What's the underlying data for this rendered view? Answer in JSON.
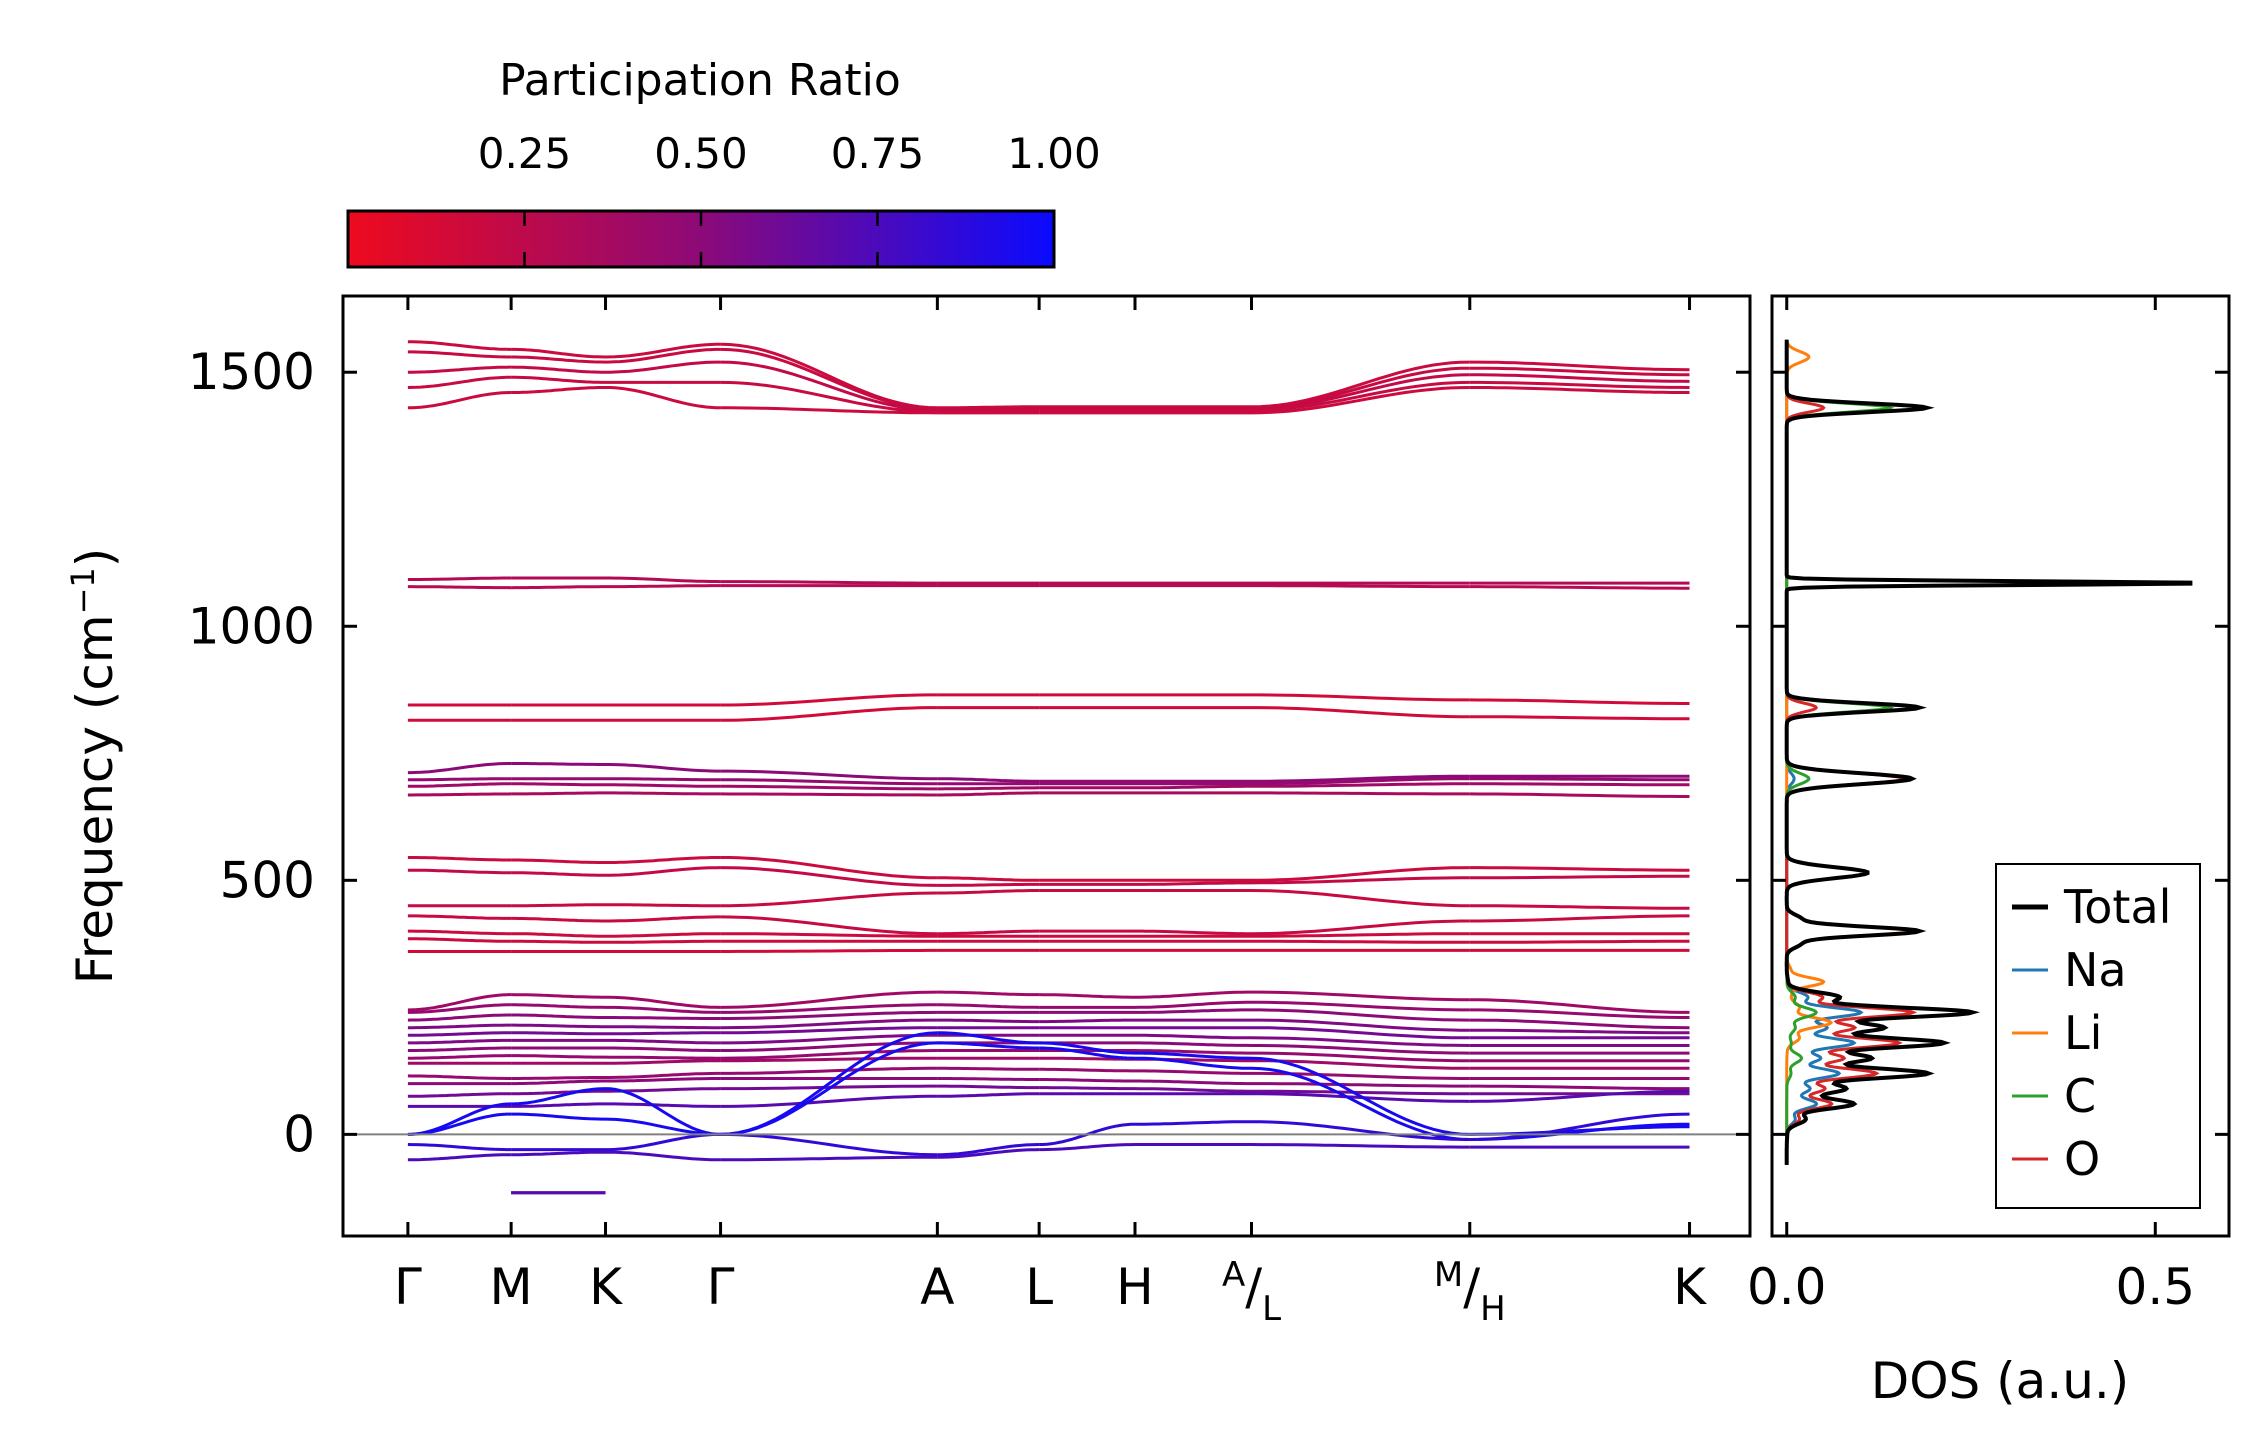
{
  "colors": {
    "low": "#ee0a1e",
    "mid": "#8c0a78",
    "high": "#0a0aff",
    "dos_total": "#000000",
    "dos_na": "#1f77b4",
    "dos_li": "#ff7f0e",
    "dos_c": "#2ca02c",
    "dos_o": "#d62728",
    "zero_line": "#808080"
  },
  "chart_data": [
    {
      "type": "line",
      "title": "",
      "ylabel": "Frequency (cm⁻¹)",
      "xlabel": "",
      "ylim": [
        -200,
        1650
      ],
      "yticks": [
        0,
        500,
        1000,
        1500
      ],
      "ytick_labels": [
        "0",
        "500",
        "1000",
        "1500"
      ],
      "kpath": [
        {
          "label": "Γ",
          "pos": 0.0
        },
        {
          "label": "M",
          "pos": 0.7
        },
        {
          "label": "K",
          "pos": 1.34
        },
        {
          "label": "Γ",
          "pos": 2.12
        },
        {
          "label": "A",
          "pos": 3.59
        },
        {
          "label": "L",
          "pos": 4.28
        },
        {
          "label": "H",
          "pos": 4.93
        },
        {
          "label": "A",
          "sub": "L",
          "pos": 5.72
        },
        {
          "label": "M",
          "sub": "H",
          "pos": 7.2
        },
        {
          "label": "K",
          "pos": 8.69
        }
      ],
      "x_range": [
        -0.44,
        9.1
      ],
      "colorbar": {
        "label": "Participation Ratio",
        "range": [
          0.0,
          1.0
        ],
        "ticks": [
          0.25,
          0.5,
          0.75,
          1.0
        ],
        "tick_labels": [
          "0.25",
          "0.50",
          "0.75",
          "1.00"
        ]
      },
      "series": [
        {
          "name": "band-1510",
          "pr": 0.18,
          "values": [
            1560,
            1545,
            1530,
            1555,
            1430,
            1432,
            1432,
            1432,
            1520,
            1505
          ]
        },
        {
          "name": "band-1495",
          "pr": 0.2,
          "values": [
            1540,
            1530,
            1520,
            1545,
            1428,
            1430,
            1430,
            1430,
            1508,
            1495
          ]
        },
        {
          "name": "band-1480",
          "pr": 0.22,
          "values": [
            1500,
            1510,
            1500,
            1520,
            1425,
            1428,
            1428,
            1428,
            1495,
            1482
          ]
        },
        {
          "name": "band-1455",
          "pr": 0.2,
          "values": [
            1470,
            1490,
            1480,
            1480,
            1422,
            1425,
            1425,
            1425,
            1480,
            1470
          ]
        },
        {
          "name": "band-1440",
          "pr": 0.18,
          "values": [
            1430,
            1460,
            1470,
            1430,
            1420,
            1420,
            1420,
            1420,
            1470,
            1460
          ]
        },
        {
          "name": "band-1090",
          "pr": 0.3,
          "values": [
            1092,
            1095,
            1095,
            1088,
            1085,
            1085,
            1085,
            1085,
            1085,
            1085
          ]
        },
        {
          "name": "band-1075",
          "pr": 0.28,
          "values": [
            1078,
            1076,
            1078,
            1080,
            1080,
            1080,
            1080,
            1080,
            1078,
            1075
          ]
        },
        {
          "name": "band-840",
          "pr": 0.15,
          "values": [
            845,
            845,
            845,
            845,
            865,
            865,
            865,
            865,
            855,
            848
          ]
        },
        {
          "name": "band-815",
          "pr": 0.15,
          "values": [
            815,
            815,
            815,
            815,
            840,
            840,
            840,
            840,
            822,
            818
          ]
        },
        {
          "name": "band-715",
          "pr": 0.5,
          "values": [
            712,
            730,
            728,
            715,
            700,
            695,
            695,
            695,
            705,
            705
          ]
        },
        {
          "name": "band-695",
          "pr": 0.45,
          "values": [
            698,
            700,
            700,
            698,
            690,
            690,
            690,
            690,
            700,
            698
          ]
        },
        {
          "name": "band-680",
          "pr": 0.4,
          "values": [
            685,
            690,
            688,
            685,
            680,
            682,
            682,
            685,
            690,
            688
          ]
        },
        {
          "name": "band-665",
          "pr": 0.35,
          "values": [
            668,
            670,
            672,
            670,
            668,
            672,
            672,
            672,
            670,
            665
          ]
        },
        {
          "name": "band-540",
          "pr": 0.18,
          "values": [
            545,
            540,
            535,
            545,
            505,
            500,
            500,
            500,
            525,
            520
          ]
        },
        {
          "name": "band-515",
          "pr": 0.22,
          "values": [
            520,
            515,
            510,
            525,
            490,
            492,
            492,
            495,
            505,
            508
          ]
        },
        {
          "name": "band-480",
          "pr": 0.2,
          "values": [
            450,
            450,
            452,
            450,
            475,
            480,
            480,
            480,
            450,
            445
          ]
        },
        {
          "name": "band-430",
          "pr": 0.2,
          "values": [
            430,
            425,
            420,
            428,
            395,
            400,
            400,
            395,
            420,
            430
          ]
        },
        {
          "name": "band-395",
          "pr": 0.18,
          "values": [
            400,
            395,
            390,
            395,
            390,
            390,
            390,
            390,
            395,
            395
          ]
        },
        {
          "name": "band-380",
          "pr": 0.18,
          "values": [
            385,
            380,
            378,
            380,
            380,
            380,
            380,
            380,
            378,
            380
          ]
        },
        {
          "name": "band-360",
          "pr": 0.15,
          "values": [
            360,
            360,
            360,
            360,
            362,
            362,
            362,
            362,
            362,
            362
          ]
        },
        {
          "name": "band-270",
          "pr": 0.4,
          "values": [
            245,
            275,
            270,
            250,
            280,
            275,
            270,
            280,
            265,
            240
          ]
        },
        {
          "name": "band-250",
          "pr": 0.45,
          "values": [
            240,
            255,
            250,
            240,
            255,
            250,
            250,
            260,
            245,
            230
          ]
        },
        {
          "name": "band-230",
          "pr": 0.5,
          "values": [
            225,
            235,
            230,
            228,
            240,
            240,
            240,
            245,
            225,
            210
          ]
        },
        {
          "name": "band-210",
          "pr": 0.55,
          "values": [
            210,
            215,
            212,
            210,
            225,
            222,
            225,
            225,
            205,
            200
          ]
        },
        {
          "name": "band-195",
          "pr": 0.6,
          "values": [
            195,
            200,
            198,
            200,
            210,
            210,
            210,
            210,
            190,
            190
          ]
        },
        {
          "name": "band-180",
          "pr": 0.55,
          "values": [
            180,
            185,
            185,
            180,
            195,
            195,
            195,
            190,
            175,
            175
          ]
        },
        {
          "name": "band-165",
          "pr": 0.5,
          "values": [
            165,
            170,
            170,
            165,
            180,
            180,
            180,
            175,
            160,
            160
          ]
        },
        {
          "name": "band-150",
          "pr": 0.45,
          "values": [
            150,
            155,
            152,
            150,
            165,
            165,
            165,
            160,
            145,
            145
          ]
        },
        {
          "name": "band-135",
          "pr": 0.4,
          "values": [
            140,
            140,
            140,
            145,
            150,
            150,
            148,
            145,
            130,
            130
          ]
        },
        {
          "name": "band-115",
          "pr": 0.45,
          "values": [
            115,
            110,
            112,
            120,
            130,
            128,
            125,
            120,
            110,
            110
          ]
        },
        {
          "name": "band-95",
          "pr": 0.5,
          "values": [
            100,
            100,
            105,
            110,
            110,
            108,
            105,
            100,
            95,
            90
          ]
        },
        {
          "name": "band-80",
          "pr": 0.6,
          "values": [
            75,
            80,
            85,
            90,
            95,
            92,
            90,
            85,
            80,
            80
          ]
        },
        {
          "name": "band-55",
          "pr": 0.7,
          "values": [
            55,
            55,
            60,
            55,
            75,
            80,
            80,
            80,
            65,
            85
          ]
        },
        {
          "name": "acoustic-1",
          "pr": 0.95,
          "values": [
            0,
            60,
            90,
            0,
            200,
            180,
            160,
            150,
            0,
            15
          ]
        },
        {
          "name": "acoustic-2",
          "pr": 0.95,
          "values": [
            0,
            40,
            30,
            0,
            180,
            170,
            150,
            130,
            -10,
            20
          ]
        },
        {
          "name": "soft-mode-1",
          "pr": 0.85,
          "values": [
            -20,
            -30,
            -30,
            0,
            -40,
            -20,
            20,
            25,
            -10,
            40
          ]
        },
        {
          "name": "soft-mode-2",
          "pr": 0.75,
          "values": [
            -50,
            -40,
            -35,
            -50,
            -45,
            -30,
            -20,
            -20,
            -25,
            -25
          ]
        },
        {
          "name": "flat-imag",
          "pr": 0.7,
          "values": [
            null,
            -115,
            -115,
            null,
            null,
            null,
            null,
            null,
            null,
            null
          ]
        }
      ]
    },
    {
      "type": "line",
      "title": "",
      "xlabel": "DOS (a.u.)",
      "ylabel": "",
      "xlim": [
        -0.02,
        0.6
      ],
      "xticks": [
        0.0,
        0.5
      ],
      "xtick_labels": [
        "0.0",
        "0.5"
      ],
      "ylim": [
        -200,
        1650
      ],
      "legend_position": "lower-right",
      "series": [
        {
          "name": "Total",
          "peaks": [
            [
              1430,
              0.19,
              12
            ],
            [
              1085,
              0.57,
              5
            ],
            [
              840,
              0.18,
              12
            ],
            [
              700,
              0.17,
              15
            ],
            [
              515,
              0.11,
              15
            ],
            [
              400,
              0.18,
              20
            ],
            [
              240,
              0.25,
              30
            ],
            [
              180,
              0.21,
              30
            ],
            [
              120,
              0.19,
              30
            ],
            [
              60,
              0.09,
              30
            ]
          ]
        },
        {
          "name": "Na",
          "peaks": [
            [
              240,
              0.1,
              30
            ],
            [
              180,
              0.09,
              30
            ],
            [
              120,
              0.07,
              30
            ],
            [
              60,
              0.04,
              30
            ],
            [
              700,
              0.01,
              15
            ]
          ]
        },
        {
          "name": "Li",
          "peaks": [
            [
              515,
              0.11,
              15
            ],
            [
              400,
              0.17,
              20
            ],
            [
              300,
              0.05,
              20
            ],
            [
              1530,
              0.03,
              15
            ],
            [
              220,
              0.06,
              30
            ]
          ]
        },
        {
          "name": "C",
          "peaks": [
            [
              1430,
              0.14,
              12
            ],
            [
              840,
              0.14,
              12
            ],
            [
              700,
              0.03,
              15
            ],
            [
              240,
              0.04,
              30
            ],
            [
              150,
              0.02,
              30
            ]
          ]
        },
        {
          "name": "O",
          "peaks": [
            [
              1430,
              0.05,
              12
            ],
            [
              1085,
              0.56,
              5
            ],
            [
              840,
              0.04,
              12
            ],
            [
              700,
              0.16,
              15
            ],
            [
              240,
              0.17,
              30
            ],
            [
              180,
              0.15,
              30
            ],
            [
              120,
              0.12,
              30
            ],
            [
              60,
              0.06,
              30
            ]
          ]
        }
      ]
    }
  ]
}
